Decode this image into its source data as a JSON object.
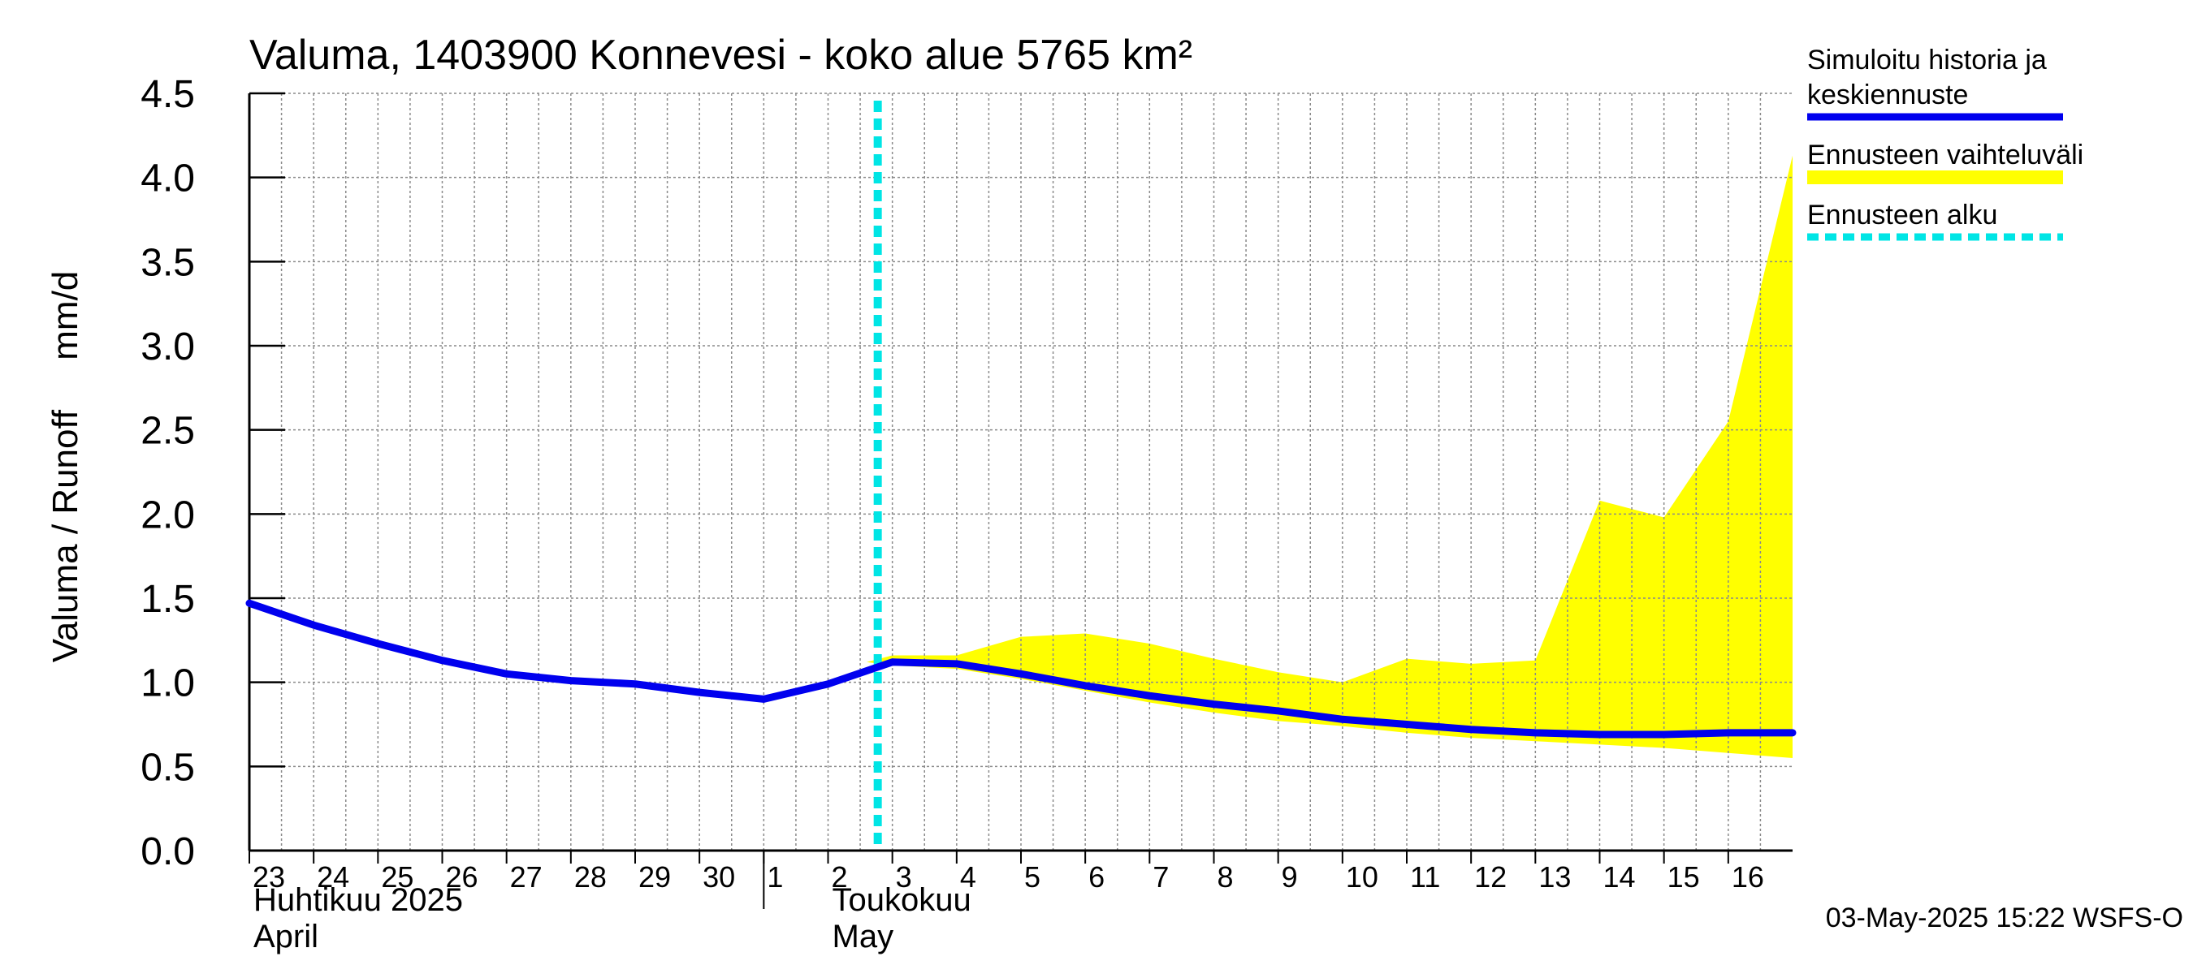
{
  "chart_data": {
    "type": "line",
    "title": "Valuma, 1403900 Konnevesi - koko alue 5765 km²",
    "ylabel": "Valuma / Runoff     mm/d",
    "ylim": [
      0,
      4.5
    ],
    "yticks": [
      "0.0",
      "0.5",
      "1.0",
      "1.5",
      "2.0",
      "2.5",
      "3.0",
      "3.5",
      "4.0",
      "4.5"
    ],
    "xlim": [
      0,
      24
    ],
    "x_ticks": [
      {
        "label": "23",
        "x": 0
      },
      {
        "label": "24",
        "x": 1
      },
      {
        "label": "25",
        "x": 2
      },
      {
        "label": "26",
        "x": 3
      },
      {
        "label": "27",
        "x": 4
      },
      {
        "label": "28",
        "x": 5
      },
      {
        "label": "29",
        "x": 6
      },
      {
        "label": "30",
        "x": 7
      },
      {
        "label": "1",
        "x": 8
      },
      {
        "label": "2",
        "x": 9
      },
      {
        "label": "3",
        "x": 10
      },
      {
        "label": "4",
        "x": 11
      },
      {
        "label": "5",
        "x": 12
      },
      {
        "label": "6",
        "x": 13
      },
      {
        "label": "7",
        "x": 14
      },
      {
        "label": "8",
        "x": 15
      },
      {
        "label": "9",
        "x": 16
      },
      {
        "label": "10",
        "x": 17
      },
      {
        "label": "11",
        "x": 18
      },
      {
        "label": "12",
        "x": 19
      },
      {
        "label": "13",
        "x": 20
      },
      {
        "label": "14",
        "x": 21
      },
      {
        "label": "15",
        "x": 22
      },
      {
        "label": "16",
        "x": 23
      }
    ],
    "month_labels": [
      {
        "line1": "Huhtikuu  2025",
        "line2": "April",
        "x": 0
      },
      {
        "line1": "Toukokuu",
        "line2": "May",
        "x": 9
      }
    ],
    "month_separator_x": 8,
    "forecast_start_x": 10,
    "series": [
      {
        "name": "Simuloitu historia ja keskiennuste",
        "color": "#0000ee",
        "x": [
          0,
          1,
          2,
          3,
          4,
          5,
          6,
          7,
          8,
          9,
          10,
          11,
          12,
          13,
          14,
          15,
          16,
          17,
          18,
          19,
          20,
          21,
          22,
          23,
          24
        ],
        "y": [
          1.47,
          1.34,
          1.23,
          1.13,
          1.05,
          1.01,
          0.99,
          0.94,
          0.9,
          0.99,
          1.12,
          1.11,
          1.05,
          0.98,
          0.92,
          0.87,
          0.83,
          0.78,
          0.75,
          0.72,
          0.7,
          0.69,
          0.69,
          0.7,
          0.7
        ]
      }
    ],
    "band": {
      "name": "Ennusteen vaihteluväli",
      "color": "#ffff00",
      "x": [
        9.6,
        10,
        11,
        12,
        13,
        14,
        15,
        16,
        17,
        18,
        19,
        20,
        21,
        22,
        23,
        24
      ],
      "upper": [
        1.12,
        1.16,
        1.16,
        1.27,
        1.29,
        1.23,
        1.14,
        1.06,
        1.0,
        1.14,
        1.11,
        1.13,
        2.08,
        1.98,
        2.55,
        4.13
      ],
      "lower": [
        1.12,
        1.1,
        1.08,
        1.02,
        0.95,
        0.88,
        0.82,
        0.77,
        0.74,
        0.7,
        0.67,
        0.65,
        0.63,
        0.61,
        0.58,
        0.55
      ]
    },
    "legend": {
      "placement": "right",
      "items": [
        {
          "lines": [
            "Simuloitu historia ja",
            "keskiennuste"
          ],
          "style": "solid",
          "color": "#0000ee"
        },
        {
          "lines": [
            "Ennusteen vaihteluväli"
          ],
          "style": "band",
          "color": "#ffff00"
        },
        {
          "lines": [
            "Ennusteen alku"
          ],
          "style": "dashed",
          "color": "#00e5e5"
        }
      ]
    },
    "footer": "03-May-2025 15:22 WSFS-O",
    "grid": true
  }
}
